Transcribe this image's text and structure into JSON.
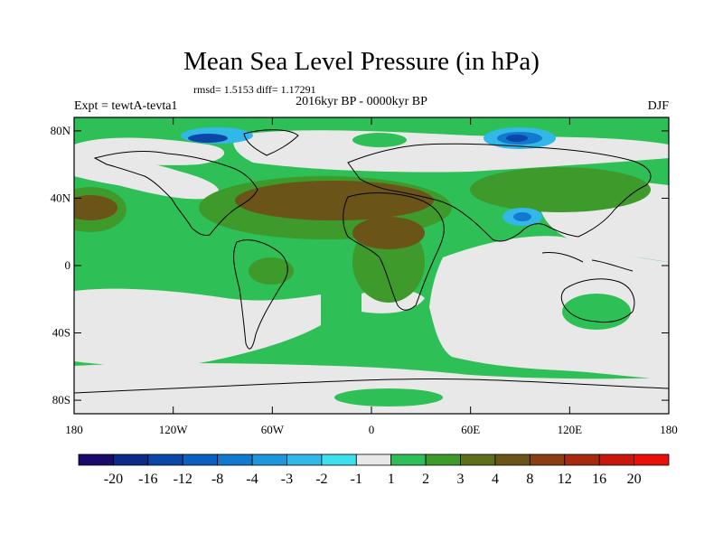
{
  "title": "Mean Sea Level Pressure (in hPa)",
  "stats": "rmsd= 1.5153 diff= 1.17291",
  "experiment": "Expt = tewtA-tevta1",
  "period": "2016kyr BP - 0000kyr BP",
  "season": "DJF",
  "lat_labels": [
    "80N",
    "40N",
    "0",
    "40S",
    "80S"
  ],
  "lat_values": [
    80,
    40,
    0,
    -40,
    -80
  ],
  "lon_labels": [
    "180",
    "120W",
    "60W",
    "0",
    "60E",
    "120E",
    "180"
  ],
  "lon_values": [
    -180,
    -120,
    -60,
    0,
    60,
    120,
    180
  ],
  "colorbar": {
    "labels": [
      "-20",
      "-16",
      "-12",
      "-8",
      "-4",
      "-3",
      "-2",
      "-1",
      "1",
      "2",
      "3",
      "4",
      "8",
      "12",
      "16",
      "20"
    ],
    "colors": [
      "#1a0b6b",
      "#0b2a8a",
      "#0b46a8",
      "#0b5fc0",
      "#1279cf",
      "#1e96dc",
      "#31b8e9",
      "#3fe0ee",
      "#e8e8e8",
      "#2fbf57",
      "#3e9a2a",
      "#5c6f1f",
      "#6b5418",
      "#8a3f12",
      "#a62a0e",
      "#c9170c",
      "#e8100a"
    ]
  },
  "colors": {
    "neutral": "#e8e8e8",
    "green": "#2fbf57",
    "olive": "#3e9a2a",
    "brown": "#6b5418",
    "lightblue": "#31b8e9",
    "blue": "#1279cf",
    "darkblue": "#0b46a8"
  }
}
